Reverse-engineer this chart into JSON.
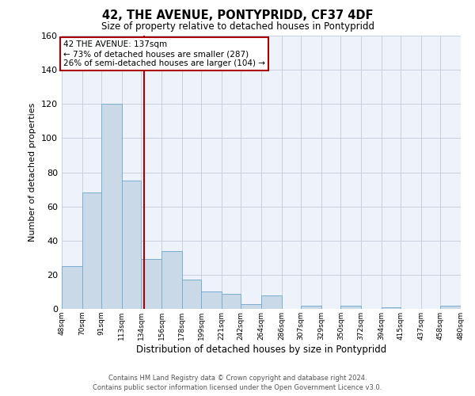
{
  "title": "42, THE AVENUE, PONTYPRIDD, CF37 4DF",
  "subtitle": "Size of property relative to detached houses in Pontypridd",
  "xlabel": "Distribution of detached houses by size in Pontypridd",
  "ylabel": "Number of detached properties",
  "bin_labels": [
    "48sqm",
    "70sqm",
    "91sqm",
    "113sqm",
    "134sqm",
    "156sqm",
    "178sqm",
    "199sqm",
    "221sqm",
    "242sqm",
    "264sqm",
    "286sqm",
    "307sqm",
    "329sqm",
    "350sqm",
    "372sqm",
    "394sqm",
    "415sqm",
    "437sqm",
    "458sqm",
    "480sqm"
  ],
  "bar_values": [
    25,
    68,
    120,
    75,
    29,
    34,
    17,
    10,
    9,
    3,
    8,
    0,
    2,
    0,
    2,
    0,
    1,
    0,
    0,
    2
  ],
  "bin_edges": [
    48,
    70,
    91,
    113,
    134,
    156,
    178,
    199,
    221,
    242,
    264,
    286,
    307,
    329,
    350,
    372,
    394,
    415,
    437,
    458,
    480
  ],
  "property_size": 137,
  "bar_color": "#c9d9e8",
  "bar_edge_color": "#7aafcf",
  "vline_color": "#aa0000",
  "annotation_line1": "42 THE AVENUE: 137sqm",
  "annotation_line2": "← 73% of detached houses are smaller (287)",
  "annotation_line3": "26% of semi-detached houses are larger (104) →",
  "annotation_box_edge": "#aa0000",
  "ylim": [
    0,
    160
  ],
  "yticks": [
    0,
    20,
    40,
    60,
    80,
    100,
    120,
    140,
    160
  ],
  "grid_color": "#c8d0e0",
  "bg_color": "#eef2fa",
  "footer_line1": "Contains HM Land Registry data © Crown copyright and database right 2024.",
  "footer_line2": "Contains public sector information licensed under the Open Government Licence v3.0."
}
